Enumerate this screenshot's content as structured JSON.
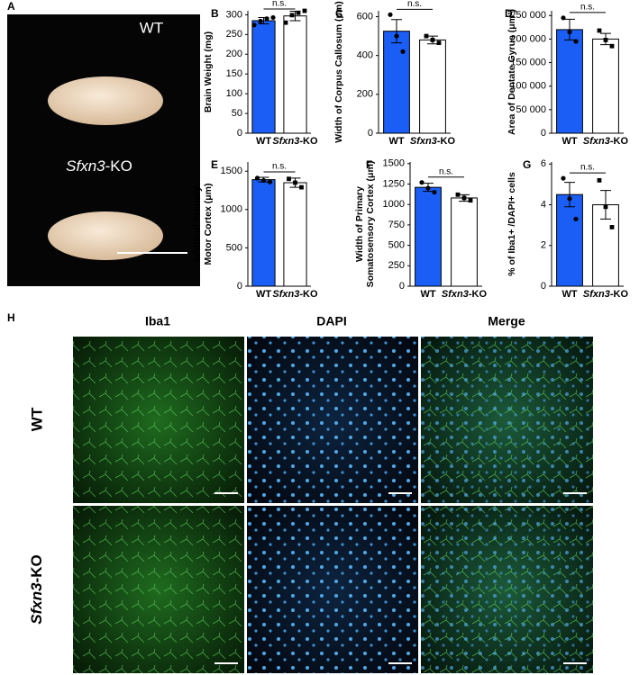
{
  "panel_labels": [
    "A",
    "B",
    "C",
    "D",
    "E",
    "F",
    "G",
    "H"
  ],
  "photo": {
    "labels": [
      "WT",
      "Sfxn3-KO"
    ]
  },
  "micrographs": {
    "columns": [
      "Iba1",
      "DAPI",
      "Merge"
    ],
    "rows": [
      "WT",
      "Sfxn3-KO"
    ]
  },
  "chart_data": [
    {
      "type": "bar",
      "ylabel": [
        "Brain Weight (mg)"
      ],
      "categories": [
        "WT",
        "Sfxn3-KO"
      ],
      "values": [
        285,
        297
      ],
      "errors": [
        8,
        12
      ],
      "points": [
        [
          274,
          284,
          290,
          293
        ],
        [
          280,
          299,
          305,
          310
        ]
      ],
      "colors": [
        "#1a5ef5",
        "#ffffff"
      ],
      "annotation": "n.s.",
      "ylim": [
        0,
        310
      ],
      "yticks": [
        0,
        50,
        100,
        150,
        200,
        250,
        300
      ]
    },
    {
      "type": "bar",
      "ylabel": [
        "Width of Corpus Callosum (μm)"
      ],
      "categories": [
        "WT",
        "Sfxn3-KO"
      ],
      "values": [
        525,
        480
      ],
      "errors": [
        60,
        20
      ],
      "points": [
        [
          610,
          500,
          420
        ],
        [
          500,
          480,
          465
        ]
      ],
      "colors": [
        "#1a5ef5",
        "#ffffff"
      ],
      "annotation": "n.s.",
      "ylim": [
        0,
        630
      ],
      "yticks": [
        0,
        200,
        400,
        600
      ]
    },
    {
      "type": "bar",
      "ylabel": [
        "Area of Dentate Gyrus (μm²)"
      ],
      "categories": [
        "WT",
        "Sfxn3-KO"
      ],
      "values": [
        220000,
        200000
      ],
      "errors": [
        22000,
        12000
      ],
      "points": [
        [
          245000,
          215000,
          195000
        ],
        [
          218000,
          198000,
          185000
        ]
      ],
      "colors": [
        "#1a5ef5",
        "#ffffff"
      ],
      "annotation": "n.s.",
      "ylim": [
        0,
        260000
      ],
      "yticks": [
        0,
        {
          "value": 50000,
          "label": "50 000"
        },
        {
          "value": 100000,
          "label": "100 000"
        },
        {
          "value": 150000,
          "label": "150 000"
        },
        {
          "value": 200000,
          "label": "200 000"
        },
        {
          "value": 250000,
          "label": "250 000"
        }
      ]
    },
    {
      "type": "bar",
      "ylabel": [
        "Width of Primary",
        "Motor Cortex (μm)"
      ],
      "categories": [
        "WT",
        "Sfxn3-KO"
      ],
      "values": [
        1390,
        1350
      ],
      "errors": [
        30,
        60
      ],
      "points": [
        [
          1410,
          1380,
          1360
        ],
        [
          1400,
          1350,
          1290
        ]
      ],
      "colors": [
        "#1a5ef5",
        "#ffffff"
      ],
      "annotation": "n.s.",
      "ylim": [
        0,
        1620
      ],
      "yticks": [
        0,
        500,
        1000,
        1500
      ]
    },
    {
      "type": "bar",
      "ylabel": [
        "Width of Primary",
        "Somatosensory Cortex (μm)"
      ],
      "categories": [
        "WT",
        "Sfxn3-KO"
      ],
      "values": [
        1210,
        1080
      ],
      "errors": [
        50,
        40
      ],
      "points": [
        [
          1270,
          1200,
          1150
        ],
        [
          1120,
          1080,
          1050
        ]
      ],
      "colors": [
        "#1a5ef5",
        "#ffffff"
      ],
      "annotation": "n.s.",
      "ylim": [
        0,
        1520
      ],
      "yticks": [
        0,
        250,
        500,
        750,
        1000,
        1250,
        1500
      ]
    },
    {
      "type": "bar",
      "ylabel": [
        "% of Iba1+ /DAPI+ cells"
      ],
      "categories": [
        "WT",
        "Sfxn3-KO"
      ],
      "values": [
        4.5,
        4.0
      ],
      "errors": [
        0.6,
        0.7
      ],
      "points": [
        [
          5.3,
          4.3,
          3.3
        ],
        [
          5.2,
          3.9,
          2.9
        ]
      ],
      "colors": [
        "#1a5ef5",
        "#ffffff"
      ],
      "annotation": "n.s.",
      "ylim": [
        0,
        6.1
      ],
      "yticks": [
        0,
        2,
        4,
        6
      ]
    }
  ]
}
